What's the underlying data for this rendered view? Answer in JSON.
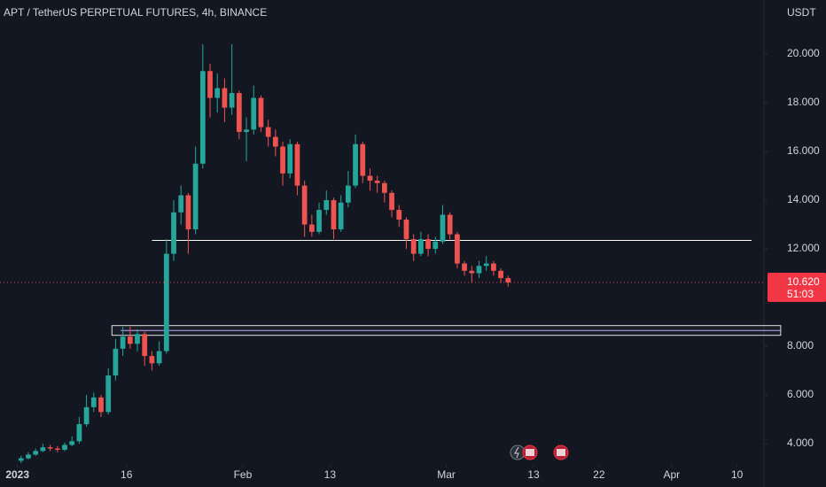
{
  "chart_data": {
    "type": "candlestick",
    "title": "APT / TetherUS PERPETUAL FUTURES, 4h, BINANCE",
    "y_unit": "USDT",
    "up_color": "#26a69a",
    "down_color": "#ef5350",
    "grid": false,
    "xlim": [
      -2.4,
      102.7
    ],
    "ylim": [
      3.13,
      22.22
    ],
    "xticks": [
      {
        "value": 0,
        "label": "2023"
      },
      {
        "value": 15,
        "label": "16"
      },
      {
        "value": 31,
        "label": "Feb"
      },
      {
        "value": 43,
        "label": "13"
      },
      {
        "value": 59,
        "label": "Mar"
      },
      {
        "value": 71,
        "label": "13"
      },
      {
        "value": 80,
        "label": "22"
      },
      {
        "value": 90,
        "label": "Apr"
      },
      {
        "value": 99,
        "label": "10"
      }
    ],
    "yticks": [
      {
        "value": 4,
        "label": "4.000"
      },
      {
        "value": 6,
        "label": "6.000"
      },
      {
        "value": 8,
        "label": "8.000"
      },
      {
        "value": 10,
        "label": "10.000"
      },
      {
        "value": 12,
        "label": "12.000"
      },
      {
        "value": 14,
        "label": "14.000"
      },
      {
        "value": 16,
        "label": "16.000"
      },
      {
        "value": 18,
        "label": "18.000"
      },
      {
        "value": 20,
        "label": "20.000"
      }
    ],
    "x": [
      0.5,
      1.5,
      2.5,
      3.5,
      4.5,
      5.5,
      6.5,
      7.5,
      8.5,
      9.5,
      10.5,
      11.5,
      12.5,
      13.5,
      14.5,
      15.5,
      16.5,
      17.5,
      18.5,
      19.5,
      20.5,
      21.5,
      22.5,
      23.5,
      24.5,
      25.5,
      26.5,
      27.5,
      28.5,
      29.5,
      30.5,
      31.5,
      32.5,
      33.5,
      34.5,
      35.5,
      36.5,
      37.5,
      38.5,
      39.5,
      40.5,
      41.5,
      42.5,
      43.5,
      44.5,
      45.5,
      46.5,
      47.5,
      48.5,
      49.5,
      50.5,
      51.5,
      52.5,
      53.5,
      54.5,
      55.5,
      56.5,
      57.5,
      58.5,
      59.5,
      60.5,
      61.5,
      62.5,
      63.5,
      64.5,
      65.5,
      66.5,
      67.5
    ],
    "open": [
      3.3,
      3.4,
      3.55,
      3.7,
      3.85,
      3.8,
      3.75,
      3.95,
      4.1,
      4.8,
      5.5,
      5.9,
      5.3,
      6.8,
      7.9,
      8.4,
      8.1,
      8.5,
      7.6,
      7.3,
      7.8,
      11.8,
      13.5,
      14.2,
      12.8,
      15.5,
      19.3,
      18.2,
      18.6,
      17.8,
      18.4,
      16.8,
      16.9,
      18.2,
      17.0,
      16.6,
      16.2,
      15.1,
      16.3,
      14.6,
      13.0,
      12.7,
      13.6,
      14.0,
      12.8,
      13.9,
      14.6,
      16.3,
      15.0,
      14.8,
      14.7,
      14.3,
      13.6,
      13.2,
      12.4,
      11.8,
      12.4,
      12.0,
      12.3,
      13.4,
      12.6,
      11.4,
      11.1,
      11.0,
      11.3,
      11.4,
      11.1,
      10.8
    ],
    "high": [
      3.5,
      3.65,
      3.8,
      4.0,
      3.95,
      3.9,
      4.05,
      4.3,
      5.1,
      6.0,
      6.1,
      6.0,
      7.1,
      8.3,
      8.8,
      8.8,
      8.7,
      8.6,
      7.8,
      8.2,
      12.4,
      14.0,
      14.6,
      14.3,
      16.2,
      20.4,
      19.6,
      19.2,
      19.0,
      20.4,
      18.5,
      17.4,
      18.7,
      18.3,
      17.3,
      16.9,
      16.4,
      16.5,
      16.4,
      14.8,
      13.4,
      13.9,
      14.4,
      14.1,
      14.2,
      15.2,
      16.7,
      16.4,
      15.3,
      15.0,
      14.8,
      14.4,
      13.8,
      13.3,
      12.6,
      12.7,
      12.6,
      12.5,
      13.8,
      13.5,
      12.7,
      11.5,
      11.3,
      11.5,
      11.7,
      11.5,
      11.2,
      10.9
    ],
    "low": [
      3.2,
      3.35,
      3.5,
      3.65,
      3.7,
      3.65,
      3.7,
      3.9,
      4.0,
      4.7,
      5.3,
      5.1,
      5.2,
      6.6,
      7.6,
      7.9,
      7.8,
      7.2,
      7.0,
      7.2,
      7.7,
      11.5,
      13.0,
      11.8,
      12.6,
      15.3,
      17.4,
      17.6,
      17.2,
      17.5,
      16.5,
      15.6,
      16.7,
      16.8,
      16.2,
      15.8,
      14.6,
      14.9,
      14.2,
      12.5,
      12.5,
      12.6,
      13.4,
      12.4,
      12.7,
      13.7,
      14.5,
      14.7,
      14.4,
      14.3,
      13.9,
      13.3,
      12.9,
      12.0,
      11.5,
      11.7,
      11.7,
      11.8,
      12.2,
      12.4,
      11.2,
      10.9,
      10.6,
      10.8,
      11.1,
      10.9,
      10.6,
      10.45
    ],
    "close": [
      3.4,
      3.55,
      3.7,
      3.85,
      3.8,
      3.75,
      3.95,
      4.1,
      4.8,
      5.5,
      5.9,
      5.3,
      6.8,
      7.9,
      8.4,
      8.1,
      8.5,
      7.6,
      7.3,
      7.8,
      11.8,
      13.5,
      14.2,
      12.8,
      15.5,
      19.3,
      18.2,
      18.6,
      17.8,
      18.4,
      16.8,
      16.9,
      18.2,
      17.0,
      16.6,
      16.2,
      15.1,
      16.3,
      14.6,
      13.0,
      12.7,
      13.6,
      14.0,
      12.8,
      13.9,
      14.6,
      16.3,
      15.0,
      14.8,
      14.7,
      14.3,
      13.6,
      13.2,
      12.4,
      11.8,
      12.4,
      12.0,
      12.3,
      13.4,
      12.6,
      11.4,
      11.1,
      11.0,
      11.3,
      11.4,
      11.1,
      10.8,
      10.62
    ],
    "hline": {
      "value": 12.35,
      "x": [
        18.5,
        101
      ]
    },
    "zone": {
      "low": 8.45,
      "high": 8.85,
      "x": [
        13,
        105
      ]
    },
    "last_price": {
      "value": 10.62,
      "label": "10.620"
    },
    "countdown": "51:03"
  }
}
